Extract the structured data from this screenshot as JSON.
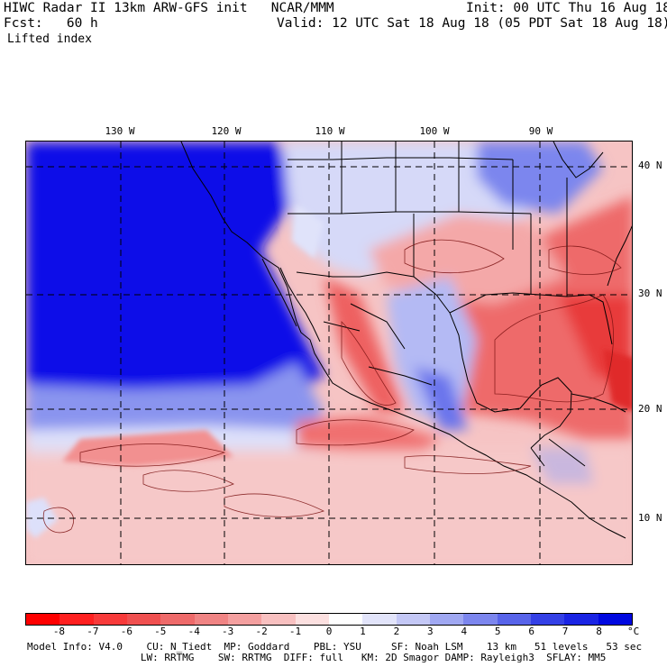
{
  "header": {
    "line1_left": "HIWC Radar II 13km ARW-GFS init   NCAR/MMM",
    "line1_right": "Init: 00 UTC Thu 16 Aug 18",
    "line2_left": "Fcst:   60 h",
    "line2_right": "Valid: 12 UTC Sat 18 Aug 18 (05 PDT Sat 18 Aug 18)",
    "field": "Lifted index"
  },
  "map": {
    "lon_labels": [
      "130 W",
      "120 W",
      "110 W",
      "100 W",
      "90 W"
    ],
    "lat_labels": [
      "40 N",
      "30 N",
      "20 N",
      "10 N"
    ],
    "colors": {
      "deep_blue": "#0000ee",
      "mid_blue": "#4a5ef0",
      "light_blue": "#c8cdf8",
      "white": "#ffffff",
      "light_red": "#f8c8c8",
      "mid_red": "#f07878",
      "deep_red": "#e83838"
    }
  },
  "colorbar": {
    "ticks": [
      "-8",
      "-7",
      "-6",
      "-5",
      "-4",
      "-3",
      "-2",
      "-1",
      "0",
      "1",
      "2",
      "3",
      "4",
      "5",
      "6",
      "7",
      "8"
    ],
    "unit": "°C",
    "colors": [
      "#ff0000",
      "#ff2020",
      "#f83a3a",
      "#f05050",
      "#ee6a6a",
      "#f08484",
      "#f4a0a0",
      "#f8c0c0",
      "#fce0e0",
      "#ffffff",
      "#e2e4fa",
      "#c4c8f6",
      "#a0a8f2",
      "#7c86ee",
      "#5864ea",
      "#3440e6",
      "#1a24e4",
      "#0008e0"
    ]
  },
  "footer": {
    "line1": "Model Info: V4.0    CU: N_Tiedt  MP: Goddard    PBL: YSU     SF: Noah LSM    13 km   51 levels   53 sec",
    "line2": "                   LW: RRTMG    SW: RRTMG  DIFF: full   KM: 2D Smagor DAMP: Rayleigh3  SFLAY: MM5"
  }
}
